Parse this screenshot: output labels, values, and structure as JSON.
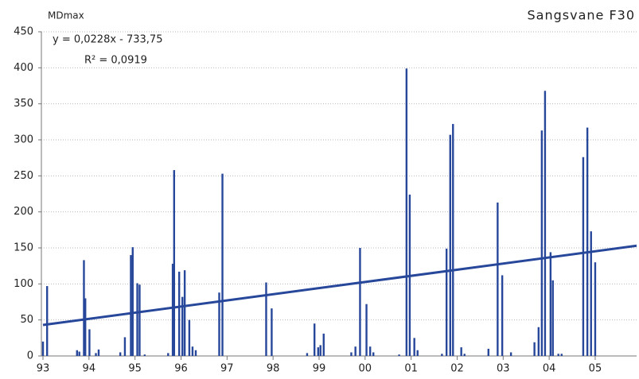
{
  "chart_data": {
    "type": "bar",
    "title": "Sangsvane F30",
    "y_label": "MDmax",
    "annotations": [
      "y = 0,0228x - 733,75",
      "R² = 0,0919"
    ],
    "color": "#27479a",
    "grid": true,
    "xlim": [
      1993,
      2005.9
    ],
    "ylim": [
      0,
      450
    ],
    "yticks": [
      0,
      50,
      100,
      150,
      200,
      250,
      300,
      350,
      400,
      450
    ],
    "xticks": [
      {
        "value": 1993,
        "label": "93"
      },
      {
        "value": 1994,
        "label": "94"
      },
      {
        "value": 1995,
        "label": "95"
      },
      {
        "value": 1996,
        "label": "96"
      },
      {
        "value": 1997,
        "label": "97"
      },
      {
        "value": 1998,
        "label": "98"
      },
      {
        "value": 1999,
        "label": "99"
      },
      {
        "value": 2000,
        "label": "00"
      },
      {
        "value": 2001,
        "label": "01"
      },
      {
        "value": 2002,
        "label": "02"
      },
      {
        "value": 2003,
        "label": "03"
      },
      {
        "value": 2004,
        "label": "04"
      },
      {
        "value": 2005,
        "label": "05"
      }
    ],
    "x": [
      1993.0,
      1993.09,
      1993.74,
      1993.79,
      1993.89,
      1993.92,
      1994.01,
      1994.15,
      1994.21,
      1994.68,
      1994.78,
      1994.91,
      1994.95,
      1995.05,
      1995.1,
      1995.21,
      1995.72,
      1995.82,
      1995.85,
      1995.96,
      1996.03,
      1996.08,
      1996.18,
      1996.25,
      1996.32,
      1996.83,
      1996.9,
      1997.85,
      1997.97,
      1998.74,
      1998.9,
      1998.98,
      1999.03,
      1999.1,
      1999.7,
      1999.79,
      1999.89,
      2000.03,
      2000.11,
      2000.18,
      2000.74,
      2000.9,
      2000.97,
      2001.07,
      2001.14,
      2001.67,
      2001.77,
      2001.85,
      2001.91,
      2002.09,
      2002.16,
      2002.68,
      2002.88,
      2002.98,
      2003.17,
      2003.68,
      2003.77,
      2003.84,
      2003.91,
      2004.03,
      2004.08,
      2004.2,
      2004.27,
      2004.74,
      2004.83,
      2004.91,
      2005.0
    ],
    "values": [
      20,
      97,
      8,
      6,
      133,
      80,
      37,
      4,
      9,
      5,
      26,
      140,
      151,
      101,
      99,
      2,
      4,
      128,
      258,
      117,
      82,
      119,
      50,
      13,
      8,
      88,
      253,
      102,
      66,
      4,
      45,
      12,
      15,
      31,
      5,
      13,
      150,
      72,
      13,
      5,
      2,
      399,
      224,
      25,
      8,
      3,
      149,
      307,
      322,
      12,
      3,
      10,
      213,
      112,
      5,
      19,
      40,
      313,
      368,
      144,
      105,
      3,
      3,
      276,
      317,
      173,
      130
    ],
    "trendline": {
      "x": [
        1993,
        2005.9
      ],
      "values": [
        43,
        153
      ]
    }
  }
}
